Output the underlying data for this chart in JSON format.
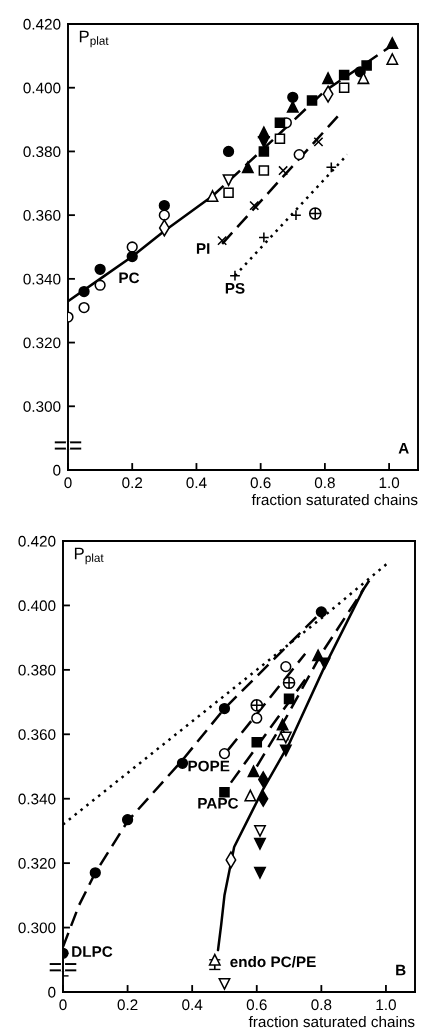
{
  "chart_data": [
    {
      "type": "scatter",
      "xlabel": "fraction saturated chains",
      "ylabel": "P$_{plat}$",
      "xlim": [
        0,
        1.09
      ],
      "ylim": [
        0.28,
        0.42
      ],
      "xticks": [
        0,
        0.2,
        0.4,
        0.6,
        0.8,
        {
          "value": 1,
          "label": "1.0"
        }
      ],
      "yticks": [
        {
          "value": 0.28,
          "label": "0"
        },
        {
          "value": 0.3,
          "label": "0.300"
        },
        {
          "value": 0.32,
          "label": "0.320"
        },
        {
          "value": 0.34,
          "label": "0.340"
        },
        {
          "value": 0.36,
          "label": "0.360"
        },
        {
          "value": 0.38,
          "label": "0.380"
        },
        {
          "value": 0.4,
          "label": "0.400"
        },
        {
          "value": 0.42,
          "label": "0.420"
        }
      ],
      "annotations": [
        "A"
      ],
      "series": [
        {
          "type": "line",
          "name": "PC",
          "color": "#000000",
          "marker": "none",
          "line_style": "solid",
          "x": [
            0,
            0.1,
            0.2,
            0.3,
            0.45
          ],
          "values": [
            0.333,
            0.34,
            0.347,
            0.355,
            0.366
          ]
        },
        {
          "type": "line",
          "color": "#000000",
          "marker": "none",
          "line_style": "dashed",
          "x": [
            0.45,
            0.6,
            0.8,
            1.02
          ],
          "values": [
            0.366,
            0.38,
            0.399,
            0.414
          ]
        },
        {
          "type": "line",
          "name": "PI",
          "color": "#000000",
          "marker": "none",
          "line_style": "dashed",
          "x": [
            0.48,
            0.84
          ],
          "values": [
            0.351,
            0.391
          ]
        },
        {
          "type": "line",
          "name": "PS",
          "color": "#000000",
          "marker": "none",
          "line_style": "dotted",
          "x": [
            0.52,
            0.87
          ],
          "values": [
            0.341,
            0.379
          ]
        },
        {
          "color": "#000000",
          "marker": "circle",
          "x": [
            0.05,
            0.1,
            0.2,
            0.3,
            0.5,
            0.7,
            0.91
          ],
          "values": [
            0.336,
            0.343,
            0.347,
            0.363,
            0.38,
            0.397,
            0.405
          ]
        },
        {
          "color": "#000000",
          "marker": "circle_open",
          "x": [
            0,
            0.05,
            0.1,
            0.2,
            0.3,
            0.68
          ],
          "values": [
            0.328,
            0.331,
            0.338,
            0.35,
            0.36,
            0.389
          ]
        },
        {
          "color": "#000000",
          "marker": "diamond_open",
          "x": [
            0.3,
            0.81
          ],
          "values": [
            0.356,
            0.398
          ]
        },
        {
          "color": "#000000",
          "marker": "triangle",
          "x": [
            0.56,
            0.61,
            0.7,
            0.81,
            1.01
          ],
          "values": [
            0.375,
            0.386,
            0.394,
            0.403,
            0.414
          ]
        },
        {
          "color": "#000000",
          "marker": "triangle_open",
          "x": [
            0.45,
            0.92,
            1.01
          ],
          "values": [
            0.366,
            0.403,
            0.409
          ]
        },
        {
          "color": "#000000",
          "marker": "triangle_down_open",
          "x": [
            0.5
          ],
          "values": [
            0.371
          ]
        },
        {
          "color": "#000000",
          "marker": "triangle_down",
          "x": [
            0.61
          ],
          "values": [
            0.383
          ]
        },
        {
          "color": "#000000",
          "marker": "square",
          "x": [
            0.61,
            0.66,
            0.76,
            0.86,
            0.93
          ],
          "values": [
            0.38,
            0.389,
            0.396,
            0.404,
            0.407
          ]
        },
        {
          "color": "#000000",
          "marker": "square_open",
          "x": [
            0.5,
            0.61,
            0.66,
            0.86
          ],
          "values": [
            0.367,
            0.374,
            0.384,
            0.4
          ]
        },
        {
          "color": "#000000",
          "marker": "circle_open",
          "x": [
            0.72
          ],
          "values": [
            0.379
          ]
        },
        {
          "color": "#000000",
          "marker": "cross",
          "x": [
            0.48,
            0.58,
            0.67,
            0.78
          ],
          "values": [
            0.352,
            0.363,
            0.374,
            0.383
          ]
        },
        {
          "color": "#000000",
          "marker": "plus",
          "x": [
            0.52,
            0.61,
            0.71,
            0.82
          ],
          "values": [
            0.341,
            0.353,
            0.36,
            0.375
          ]
        },
        {
          "color": "#000000",
          "x": [
            0.77
          ],
          "values": [
            0.3605
          ]
        }
      ]
    },
    {
      "type": "scatter",
      "xlabel": "fraction saturated chains",
      "ylabel": "P$_{plat}$",
      "xlim": [
        0,
        1.09
      ],
      "ylim": [
        0.28,
        0.42
      ],
      "xticks": [
        0,
        0.2,
        0.4,
        0.6,
        0.8,
        {
          "value": 1,
          "label": "1.0"
        }
      ],
      "yticks": [
        {
          "value": 0.28,
          "label": "0"
        },
        {
          "value": 0.3,
          "label": "0.300"
        },
        {
          "value": 0.32,
          "label": "0.320"
        },
        {
          "value": 0.34,
          "label": "0.340"
        },
        {
          "value": 0.36,
          "label": "0.360"
        },
        {
          "value": 0.38,
          "label": "0.380"
        },
        {
          "value": 0.4,
          "label": "0.400"
        },
        {
          "value": 0.42,
          "label": "0.420"
        }
      ],
      "annotations": [
        "B"
      ],
      "series": [
        {
          "type": "line",
          "color": "#000000",
          "marker": "none",
          "line_style": "dotted",
          "x": [
            0,
            0.3,
            0.6,
            0.8,
            1.01
          ],
          "values": [
            0.332,
            0.356,
            0.38,
            0.396,
            0.4135
          ]
        },
        {
          "type": "line",
          "name": "DLPC",
          "color": "#000000",
          "marker": "none",
          "line_style": "dashed",
          "x": [
            0,
            0.05,
            0.1,
            0.2,
            0.37,
            0.5,
            0.65,
            0.8
          ],
          "values": [
            0.294,
            0.307,
            0.317,
            0.333,
            0.352,
            0.368,
            0.383,
            0.398
          ]
        },
        {
          "type": "line",
          "name": "POPE",
          "color": "#000000",
          "marker": "none",
          "line_style": "dashed",
          "x": [
            0.51,
            0.75
          ],
          "values": [
            0.355,
            0.385
          ]
        },
        {
          "type": "line",
          "name": "PAPC",
          "color": "#000000",
          "marker": "none",
          "line_style": "dashed",
          "x": [
            0.52,
            0.75
          ],
          "values": [
            0.345,
            0.377
          ]
        },
        {
          "type": "line",
          "color": "#000000",
          "marker": "none",
          "line_style": "dashed",
          "x": [
            0.6,
            0.69,
            0.8,
            0.95
          ],
          "values": [
            0.35,
            0.365,
            0.385,
            0.408
          ]
        },
        {
          "type": "line",
          "name": "endo PC/PE",
          "color": "#000000",
          "marker": "none",
          "line_style": "solid",
          "x": [
            0.48,
            0.49,
            0.5,
            0.53,
            0.59,
            0.62,
            0.7,
            0.81,
            0.93
          ],
          "values": [
            0.293,
            0.301,
            0.31,
            0.325,
            0.337,
            0.343,
            0.357,
            0.381,
            0.405
          ]
        },
        {
          "color": "#000000",
          "marker": "circle",
          "x": [
            0,
            0.1,
            0.2,
            0.37,
            0.5,
            0.8
          ],
          "values": [
            0.292,
            0.317,
            0.3335,
            0.351,
            0.368,
            0.398
          ],
          "errors": [
            [
              0.285,
              0.292
            ],
            null,
            null,
            null,
            null,
            null
          ]
        },
        {
          "color": "#000000",
          "marker": "circle_open",
          "x": [
            0.5,
            0.6,
            0.69
          ],
          "values": [
            0.354,
            0.365,
            0.381
          ]
        },
        {
          "color": "#000000",
          "x": [
            0.6,
            0.7
          ],
          "values": [
            0.369,
            0.376
          ]
        },
        {
          "color": "#000000",
          "marker": "square",
          "x": [
            0.5,
            0.6,
            0.7
          ],
          "values": [
            0.342,
            0.3575,
            0.371
          ]
        },
        {
          "color": "#000000",
          "marker": "triangle",
          "x": [
            0.59,
            0.68,
            0.79
          ],
          "values": [
            0.3485,
            0.363,
            0.3845
          ]
        },
        {
          "color": "#000000",
          "marker": "triangle_open",
          "x": [
            0.58,
            0.68,
            0.47
          ],
          "values": [
            0.341,
            0.36,
            0.29
          ],
          "errors": [
            null,
            null,
            [
              0.287,
              0.29
            ]
          ]
        },
        {
          "color": "#000000",
          "marker": "diamond",
          "x": [
            0.62,
            0.62
          ],
          "values": [
            0.346,
            0.34
          ]
        },
        {
          "color": "#000000",
          "marker": "triangle_down_open",
          "x": [
            0.69,
            0.61,
            0.5
          ],
          "values": [
            0.359,
            0.33,
            0.2825
          ]
        },
        {
          "color": "#000000",
          "marker": "triangle_down",
          "x": [
            0.81,
            0.69,
            0.61,
            0.61
          ],
          "values": [
            0.382,
            0.355,
            0.326,
            0.317
          ]
        },
        {
          "color": "#000000",
          "marker": "diamond_open",
          "x": [
            0.52
          ],
          "values": [
            0.321
          ]
        }
      ]
    }
  ]
}
